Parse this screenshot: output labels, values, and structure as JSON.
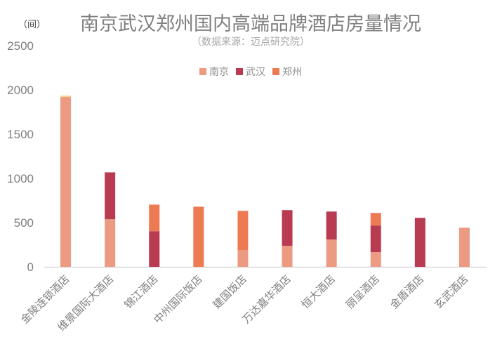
{
  "chart_data": {
    "type": "bar",
    "stacked": true,
    "title": "南京武汉郑州国内高端品牌酒店房量情况",
    "subtitle": "（数据来源：迈点研究院）",
    "ylabel": "（间）",
    "xlabel": "",
    "ylim": [
      0,
      2500
    ],
    "yticks": [
      0,
      500,
      1000,
      1500,
      2000,
      2500
    ],
    "grid": false,
    "legend_position": "top",
    "categories": [
      "金陵连锁酒店",
      "维景国际大酒店",
      "锦江酒店",
      "中州国际饭店",
      "建国饭店",
      "万达嘉华酒店",
      "恒大酒店",
      "丽呈酒店",
      "金盾酒店",
      "玄武酒店"
    ],
    "series": [
      {
        "name": "南京",
        "color": "#ec9a82",
        "values": [
          1920,
          538,
          0,
          0,
          190,
          237,
          309,
          166,
          0,
          443
        ]
      },
      {
        "name": "武汉",
        "color": "#b93b52",
        "values": [
          0,
          530,
          403,
          0,
          0,
          404,
          316,
          301,
          554,
          0
        ]
      },
      {
        "name": "郑州",
        "color": "#ee7a54",
        "values": [
          0,
          0,
          300,
          680,
          443,
          0,
          0,
          142,
          0,
          0
        ]
      },
      {
        "color": "#f9d48e",
        "values": [
          15,
          0,
          0,
          0,
          0,
          0,
          0,
          0,
          0,
          0
        ]
      }
    ]
  }
}
